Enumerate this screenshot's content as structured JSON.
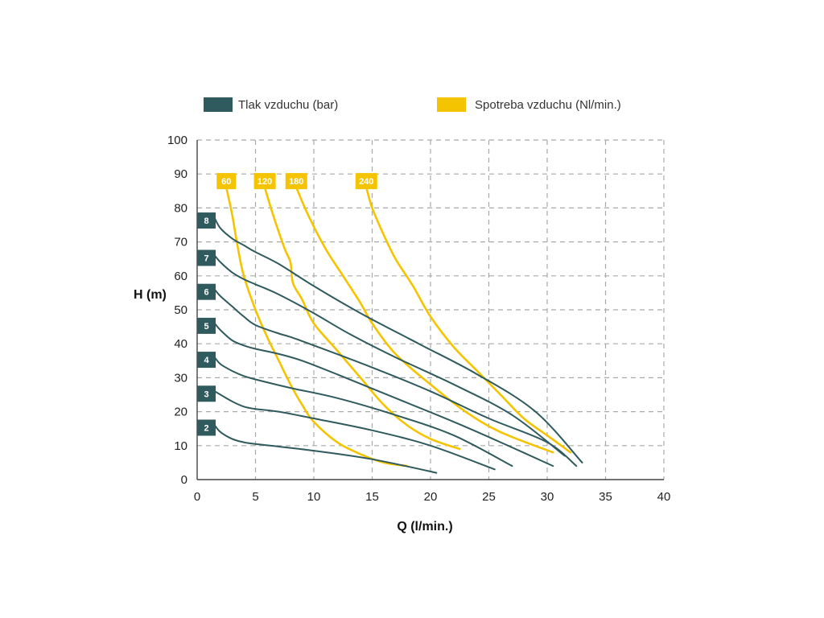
{
  "chart_data": {
    "type": "line",
    "xlabel": "Q (l/min.)",
    "ylabel": "H (m)",
    "xlim": [
      0,
      40
    ],
    "ylim": [
      0,
      100
    ],
    "xticks": [
      "0",
      "5",
      "10",
      "15",
      "20",
      "25",
      "30",
      "35",
      "40"
    ],
    "yticks": [
      "0",
      "10",
      "20",
      "30",
      "40",
      "50",
      "60",
      "70",
      "80",
      "90",
      "100"
    ],
    "grid": true,
    "legend_position": "top",
    "legend": [
      {
        "label": "Tlak vzduchu (bar)",
        "color": "#2f5a5e"
      },
      {
        "label": "Spotreba vzduchu (Nl/min.)",
        "color": "#f5c400"
      }
    ],
    "series": [
      {
        "group": "pressure",
        "name": "2",
        "color": "#2f5a5e",
        "points": [
          [
            1.5,
            16
          ],
          [
            2,
            14
          ],
          [
            3,
            12
          ],
          [
            4,
            11
          ],
          [
            5,
            10.5
          ],
          [
            10,
            8.5
          ],
          [
            15,
            6
          ],
          [
            20.5,
            2
          ]
        ]
      },
      {
        "group": "pressure",
        "name": "3",
        "color": "#2f5a5e",
        "points": [
          [
            1.5,
            26
          ],
          [
            2,
            25
          ],
          [
            3,
            23
          ],
          [
            4,
            21.5
          ],
          [
            5,
            20.8
          ],
          [
            7,
            20
          ],
          [
            10,
            18
          ],
          [
            15,
            14.5
          ],
          [
            20,
            10
          ],
          [
            25.5,
            3
          ]
        ]
      },
      {
        "group": "pressure",
        "name": "4",
        "color": "#2f5a5e",
        "points": [
          [
            1.5,
            36
          ],
          [
            2,
            34
          ],
          [
            3,
            32
          ],
          [
            4,
            30.5
          ],
          [
            5,
            29.5
          ],
          [
            8,
            27
          ],
          [
            12,
            24
          ],
          [
            17,
            19
          ],
          [
            22,
            13
          ],
          [
            27,
            4
          ]
        ]
      },
      {
        "group": "pressure",
        "name": "5",
        "color": "#2f5a5e",
        "points": [
          [
            1.5,
            46
          ],
          [
            2,
            44
          ],
          [
            3,
            41
          ],
          [
            4,
            39.5
          ],
          [
            5,
            38.5
          ],
          [
            7,
            37
          ],
          [
            9,
            35
          ],
          [
            12,
            31
          ],
          [
            17,
            24
          ],
          [
            22,
            17
          ],
          [
            26,
            11
          ],
          [
            30.5,
            4
          ]
        ]
      },
      {
        "group": "pressure",
        "name": "6",
        "color": "#2f5a5e",
        "points": [
          [
            1.5,
            56
          ],
          [
            2,
            54
          ],
          [
            3,
            51
          ],
          [
            4,
            48
          ],
          [
            5,
            45.5
          ],
          [
            7,
            43
          ],
          [
            8,
            42
          ],
          [
            10,
            39.5
          ],
          [
            15,
            33
          ],
          [
            20,
            26
          ],
          [
            25,
            18
          ],
          [
            30,
            11
          ],
          [
            32.5,
            4
          ]
        ]
      },
      {
        "group": "pressure",
        "name": "7",
        "color": "#2f5a5e",
        "points": [
          [
            1.5,
            66
          ],
          [
            2,
            64
          ],
          [
            3,
            61
          ],
          [
            4,
            59
          ],
          [
            5,
            57.5
          ],
          [
            7,
            54.5
          ],
          [
            10,
            49
          ],
          [
            13,
            43
          ],
          [
            17,
            36
          ],
          [
            22,
            28
          ],
          [
            27,
            19
          ],
          [
            31.5,
            7
          ]
        ]
      },
      {
        "group": "pressure",
        "name": "8",
        "color": "#2f5a5e",
        "points": [
          [
            1.5,
            77
          ],
          [
            2,
            74
          ],
          [
            3,
            71
          ],
          [
            4,
            69
          ],
          [
            5,
            67
          ],
          [
            7,
            63.5
          ],
          [
            10,
            57
          ],
          [
            14,
            49
          ],
          [
            19,
            40
          ],
          [
            24,
            31
          ],
          [
            29,
            20
          ],
          [
            33,
            5
          ]
        ]
      },
      {
        "group": "consumption",
        "name": "60",
        "color": "#f5c400",
        "points": [
          [
            2.5,
            86
          ],
          [
            3,
            78
          ],
          [
            3.5,
            68
          ],
          [
            4,
            60
          ],
          [
            5,
            50
          ],
          [
            6,
            42
          ],
          [
            7,
            35
          ],
          [
            8,
            28
          ],
          [
            9,
            22
          ],
          [
            10,
            17
          ],
          [
            12,
            11
          ],
          [
            14,
            7.5
          ],
          [
            16,
            5
          ],
          [
            18,
            4
          ]
        ]
      },
      {
        "group": "consumption",
        "name": "120",
        "color": "#f5c400",
        "points": [
          [
            5.8,
            86
          ],
          [
            6.5,
            78
          ],
          [
            7.5,
            68
          ],
          [
            8,
            64
          ],
          [
            8.2,
            58
          ],
          [
            9,
            53
          ],
          [
            10,
            46
          ],
          [
            12,
            38
          ],
          [
            14,
            30
          ],
          [
            16,
            22
          ],
          [
            18,
            16
          ],
          [
            20,
            12
          ],
          [
            22.5,
            9
          ]
        ]
      },
      {
        "group": "consumption",
        "name": "180",
        "color": "#f5c400",
        "points": [
          [
            8.5,
            86
          ],
          [
            9.5,
            78
          ],
          [
            11,
            68
          ],
          [
            12.5,
            60
          ],
          [
            14,
            52
          ],
          [
            15,
            46
          ],
          [
            17,
            37
          ],
          [
            20,
            28
          ],
          [
            23,
            20
          ],
          [
            26,
            14
          ],
          [
            30.5,
            8
          ]
        ]
      },
      {
        "group": "consumption",
        "name": "240",
        "color": "#f5c400",
        "points": [
          [
            14.5,
            86
          ],
          [
            15,
            80
          ],
          [
            16,
            72
          ],
          [
            17,
            65
          ],
          [
            18.5,
            57
          ],
          [
            20,
            48
          ],
          [
            22,
            39
          ],
          [
            24,
            32
          ],
          [
            26,
            25
          ],
          [
            28,
            18
          ],
          [
            30,
            13
          ],
          [
            32,
            8
          ]
        ]
      }
    ]
  }
}
